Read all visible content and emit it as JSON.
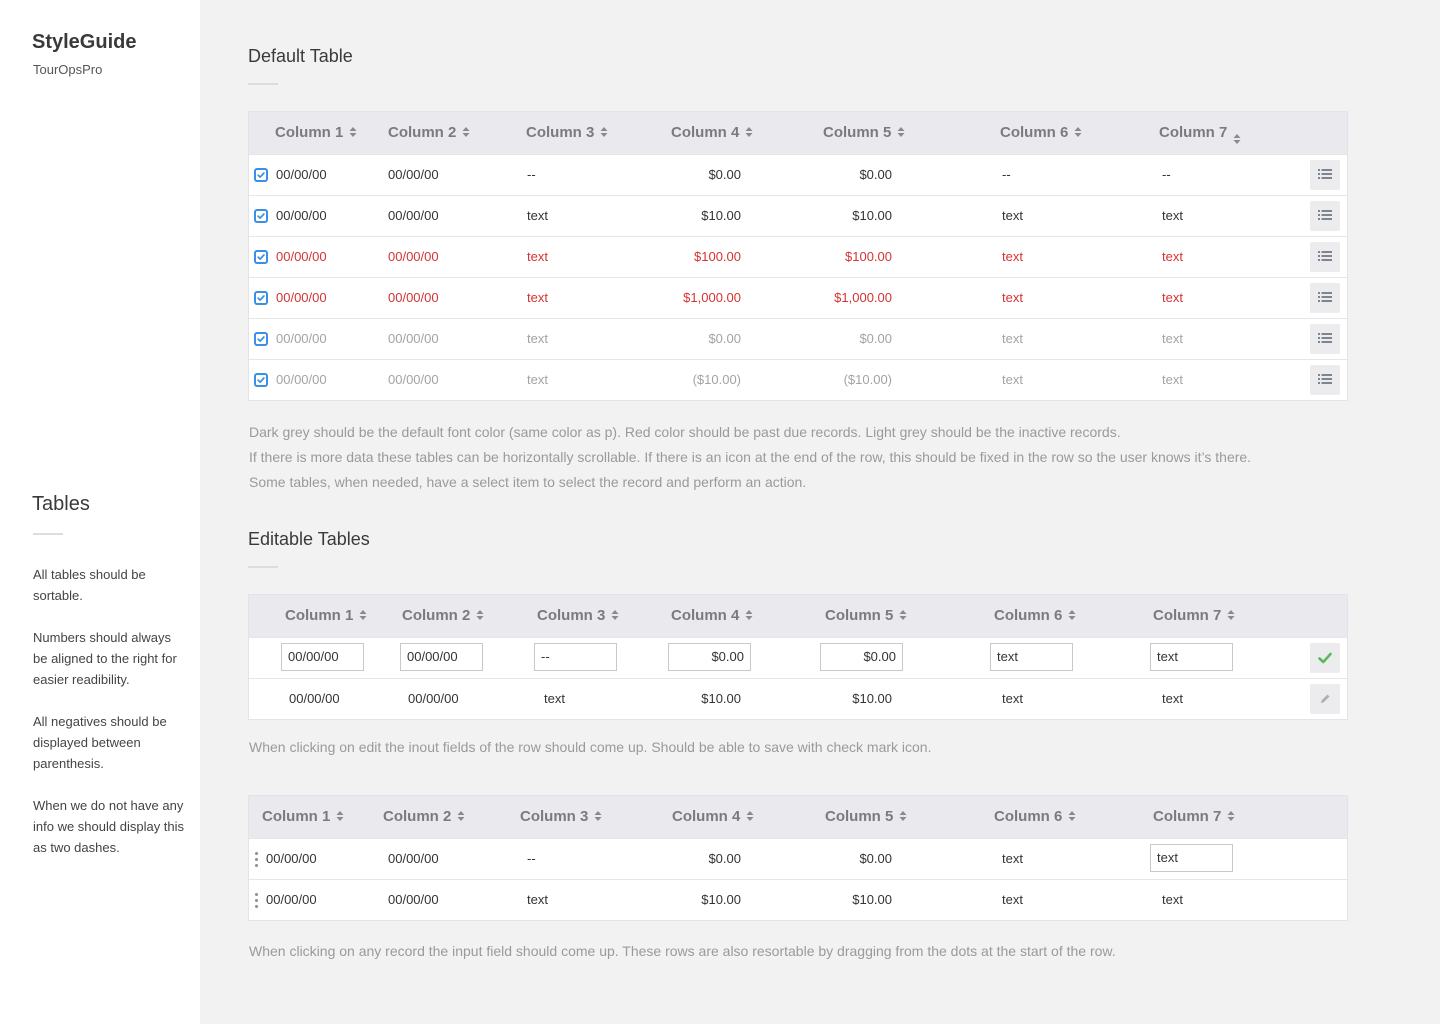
{
  "sidebar": {
    "brand": "StyleGuide",
    "subtitle": "TourOpsPro",
    "section_title": "Tables",
    "notes": [
      "All tables should be sortable.",
      "Numbers should always be aligned to the right for easier readibility.",
      "All negatives should be displayed between parenthesis.",
      "When we do not have any info we should display this as two dashes."
    ]
  },
  "default_table": {
    "title": "Default Table",
    "columns": [
      "Column 1",
      "Column 2",
      "Column 3",
      "Column 4",
      "Column 5",
      "Column 6",
      "Column 7"
    ],
    "rows": [
      {
        "state": "normal",
        "cells": [
          "00/00/00",
          "00/00/00",
          "--",
          "$0.00",
          "$0.00",
          "--",
          "--"
        ]
      },
      {
        "state": "normal",
        "cells": [
          "00/00/00",
          "00/00/00",
          "text",
          "$10.00",
          "$10.00",
          "text",
          "text"
        ]
      },
      {
        "state": "past-due",
        "cells": [
          "00/00/00",
          "00/00/00",
          "text",
          "$100.00",
          "$100.00",
          "text",
          "text"
        ]
      },
      {
        "state": "past-due",
        "cells": [
          "00/00/00",
          "00/00/00",
          "text",
          "$1,000.00",
          "$1,000.00",
          "text",
          "text"
        ]
      },
      {
        "state": "inactive",
        "cells": [
          "00/00/00",
          "00/00/00",
          "text",
          "$0.00",
          "$0.00",
          "text",
          "text"
        ]
      },
      {
        "state": "inactive",
        "cells": [
          "00/00/00",
          "00/00/00",
          "text",
          "($10.00)",
          "($10.00)",
          "text",
          "text"
        ]
      }
    ],
    "notes": [
      "Dark grey should be the default font color (same color as p). Red color should be past due records. Light grey should be the inactive records.",
      "If there is more data these tables can be horizontally scrollable. If there is an icon at the end of the row, this should be fixed in the row so the user knows it’s there.",
      "Some tables, when needed, have a select item to select the record and perform an action."
    ]
  },
  "editable_table": {
    "title": "Editable Tables",
    "columns": [
      "Column 1",
      "Column 2",
      "Column 3",
      "Column 4",
      "Column 5",
      "Column 6",
      "Column 7"
    ],
    "edit_row": [
      "00/00/00",
      "00/00/00",
      "--",
      "$0.00",
      "$0.00",
      "text",
      "text"
    ],
    "view_row": [
      "00/00/00",
      "00/00/00",
      "text",
      "$10.00",
      "$10.00",
      "text",
      "text"
    ],
    "note": "When clicking on edit the inout fields of the row should come up. Should be able to save with check mark icon."
  },
  "sortable_table": {
    "columns": [
      "Column 1",
      "Column 2",
      "Column 3",
      "Column 4",
      "Column 5",
      "Column 6",
      "Column 7"
    ],
    "rows": [
      [
        "00/00/00",
        "00/00/00",
        "--",
        "$0.00",
        "$0.00",
        "text",
        "text"
      ],
      [
        "00/00/00",
        "00/00/00",
        "text",
        "$10.00",
        "$10.00",
        "text",
        "text"
      ]
    ],
    "note": "When clicking on any record the input field should come up. These rows are also resortable by dragging from the dots at the start of the row."
  },
  "colors": {
    "accent": "#3b8fe6",
    "past_due": "#d63333",
    "inactive": "#a3a3a3",
    "confirm": "#5cb85c"
  },
  "icons": {
    "sort": "sort-arrows-icon",
    "row_menu": "list-icon",
    "save": "checkmark-icon",
    "edit": "pencil-icon",
    "drag": "drag-handle-icon",
    "select": "checkbox-icon"
  }
}
